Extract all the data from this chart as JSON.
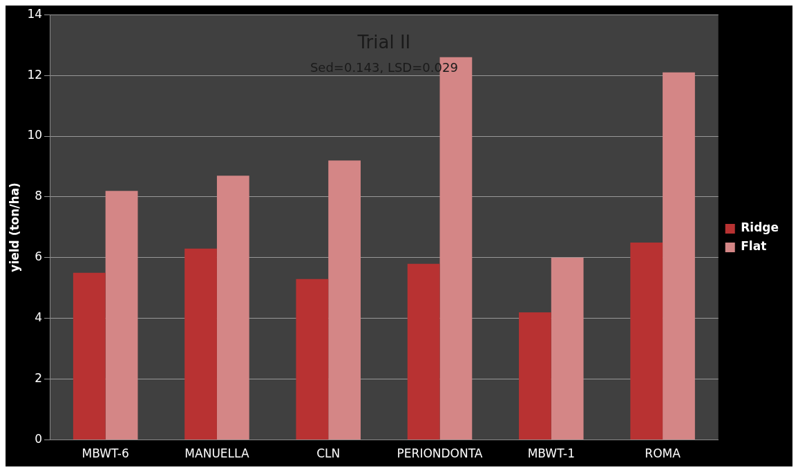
{
  "chart_data": {
    "type": "bar",
    "title": "Trial II",
    "subtitle": "Sed=0.143, LSD=0.029",
    "ylabel": "yield (ton/ha)",
    "categories": [
      "MBWT-6",
      "MANUELLA",
      "CLN",
      "PERIONDONTA",
      "MBWT-1",
      "ROMA"
    ],
    "series": [
      {
        "name": "Ridge",
        "color": "#b83232",
        "values": [
          5.5,
          6.3,
          5.3,
          5.8,
          4.2,
          6.5
        ]
      },
      {
        "name": "Flat",
        "color": "#d48686",
        "values": [
          8.2,
          8.7,
          9.2,
          12.6,
          6.0,
          12.1
        ]
      }
    ],
    "ylim": [
      0,
      14
    ],
    "yticks": [
      0,
      2,
      4,
      6,
      8,
      10,
      12,
      14
    ],
    "grid": "y",
    "legend": "right"
  }
}
